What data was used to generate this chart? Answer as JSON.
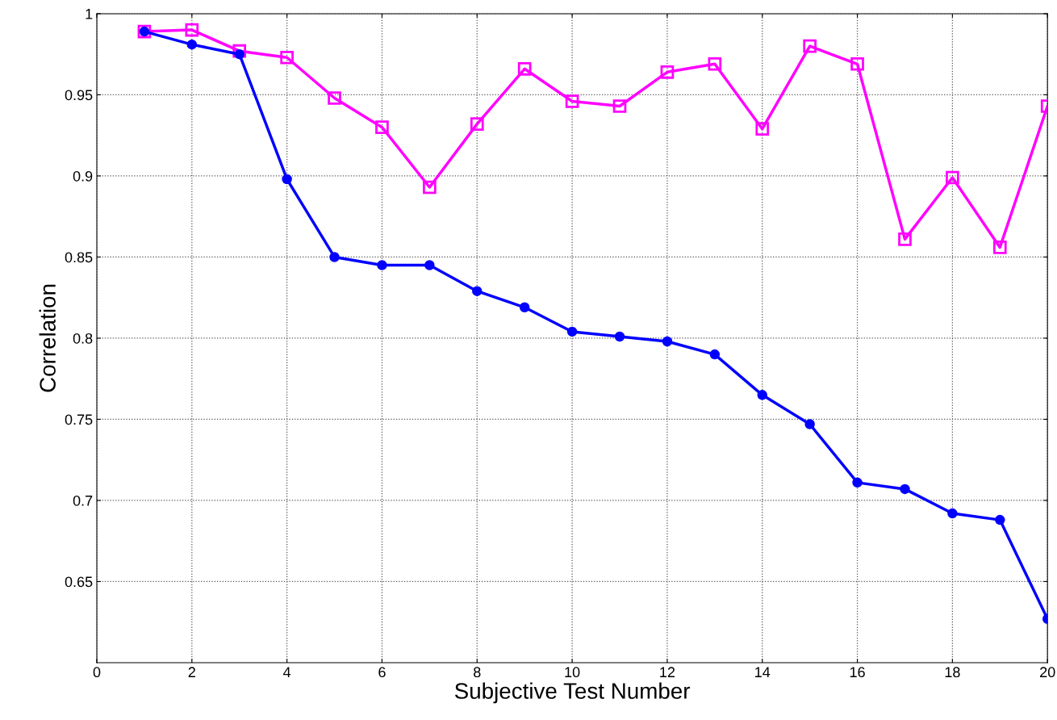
{
  "chart_data": {
    "type": "line",
    "xlabel": "Subjective Test Number",
    "ylabel": "Correlation",
    "x": [
      1,
      2,
      3,
      4,
      5,
      6,
      7,
      8,
      9,
      10,
      11,
      12,
      13,
      14,
      15,
      16,
      17,
      18,
      19,
      20
    ],
    "series": [
      {
        "color": "#0000ff",
        "marker": "circle",
        "values": [
          0.989,
          0.981,
          0.975,
          0.898,
          0.85,
          0.845,
          0.845,
          0.829,
          0.819,
          0.804,
          0.801,
          0.798,
          0.79,
          0.765,
          0.747,
          0.711,
          0.707,
          0.692,
          0.688,
          0.627
        ]
      },
      {
        "color": "#ff00ff",
        "marker": "square",
        "values": [
          0.989,
          0.99,
          0.977,
          0.973,
          0.948,
          0.93,
          0.893,
          0.932,
          0.966,
          0.946,
          0.943,
          0.964,
          0.969,
          0.929,
          0.98,
          0.969,
          0.861,
          0.899,
          0.856,
          0.943
        ]
      }
    ],
    "xlim": [
      0,
      20
    ],
    "xticks": [
      0,
      2,
      4,
      6,
      8,
      10,
      12,
      14,
      16,
      18,
      20
    ],
    "ylim": [
      0.6,
      1
    ],
    "yticks": [
      0.65,
      0.7,
      0.75,
      0.8,
      0.85,
      0.9,
      0.95,
      1
    ],
    "grid": true,
    "line_style": "solid"
  }
}
